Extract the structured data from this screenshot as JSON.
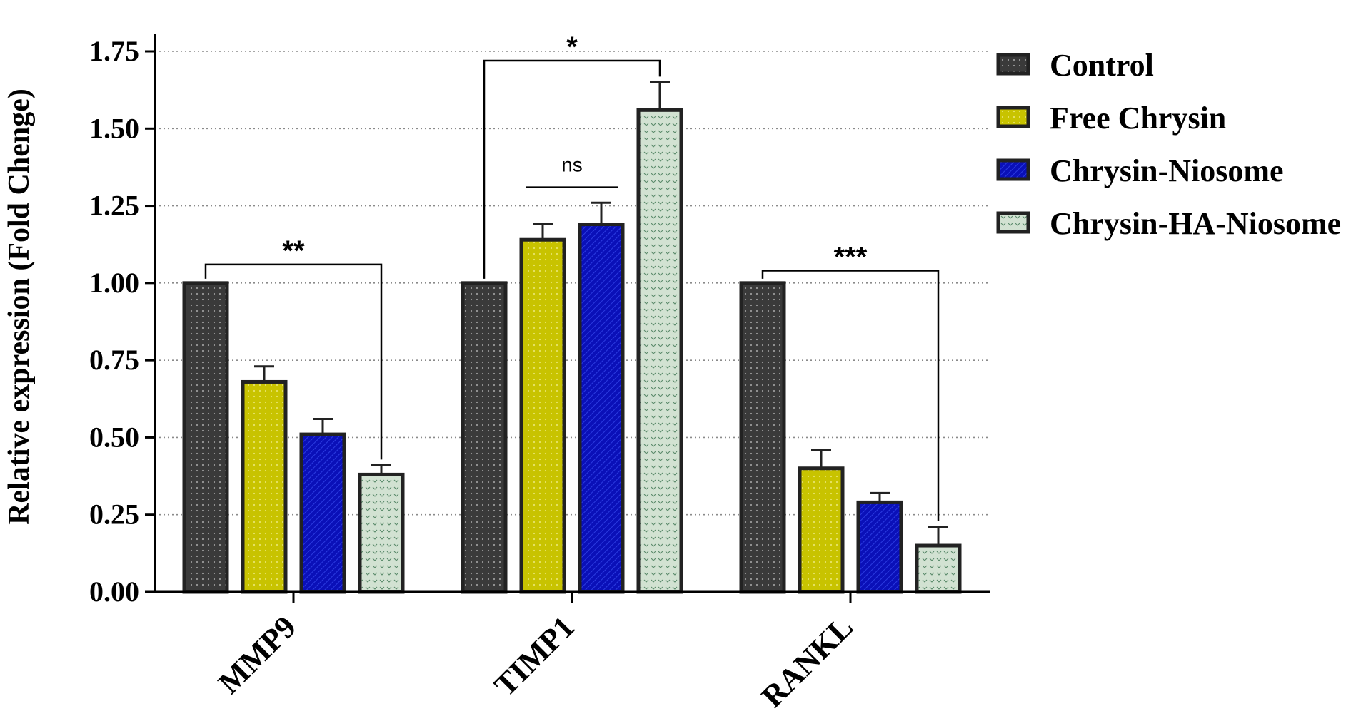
{
  "chart_data": {
    "type": "bar",
    "title": "",
    "xlabel": "",
    "ylabel": "Relative expression (Fold Chenge)",
    "ylim": [
      0,
      1.75
    ],
    "yticks": [
      "0.00",
      "0.25",
      "0.50",
      "0.75",
      "1.00",
      "1.25",
      "1.50",
      "1.75"
    ],
    "grid": "horizontal-dotted",
    "legend_position": "top-right",
    "categories": [
      "MMP9",
      "TIMP1",
      "RANKL"
    ],
    "series": [
      {
        "name": "Control",
        "color": "#3a3a3a",
        "pattern": "dots",
        "values": [
          1.0,
          1.0,
          1.0
        ],
        "errors": [
          0,
          0,
          0
        ]
      },
      {
        "name": "Free Chrysin",
        "color": "#c8c300",
        "pattern": "dots",
        "values": [
          0.68,
          1.14,
          0.4
        ],
        "errors": [
          0.05,
          0.05,
          0.06
        ]
      },
      {
        "name": "Chrysin-Niosome",
        "color": "#0a10b8",
        "pattern": "hatch",
        "values": [
          0.51,
          1.19,
          0.29
        ],
        "errors": [
          0.05,
          0.07,
          0.03
        ]
      },
      {
        "name": "Chrysin-HA-Niosome",
        "color": "#c8dcc8",
        "pattern": "chevrons",
        "values": [
          0.38,
          1.56,
          0.15
        ],
        "errors": [
          0.03,
          0.09,
          0.06
        ]
      }
    ],
    "annotations": [
      {
        "category": "MMP9",
        "from_series": 0,
        "to_series": 3,
        "label": "**",
        "level": 1.06
      },
      {
        "category": "TIMP1",
        "from_series": 0,
        "to_series": 3,
        "label": "*",
        "level": 1.72
      },
      {
        "category": "TIMP1",
        "from_series": 1,
        "to_series": 2,
        "label": "ns",
        "level": 1.31,
        "style": "flat"
      },
      {
        "category": "RANKL",
        "from_series": 0,
        "to_series": 3,
        "label": "***",
        "level": 1.04
      }
    ]
  }
}
